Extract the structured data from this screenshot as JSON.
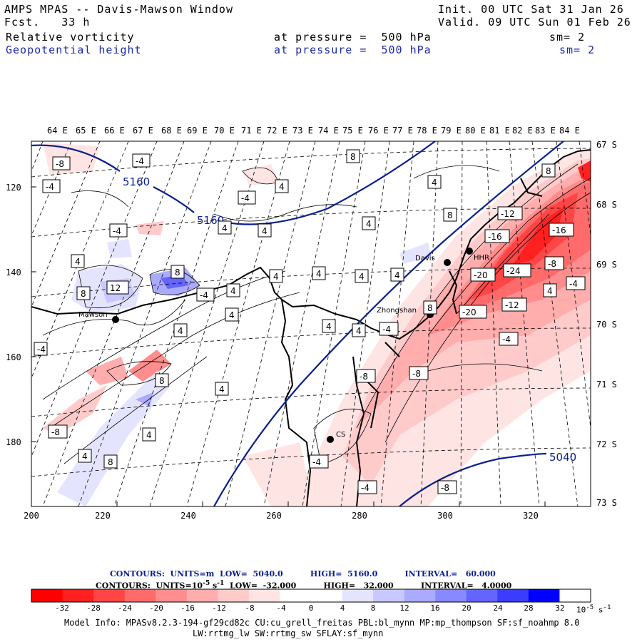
{
  "header": {
    "title": "AMPS MPAS -- Davis-Mawson Window",
    "fcst": "Fcst.   33 h",
    "init": "Init. 00 UTC Sat 31 Jan 26",
    "valid": "Valid. 09 UTC Sun 01 Feb 26",
    "field1": {
      "name": "Relative vorticity",
      "pressure": "at pressure =  500 hPa",
      "sm": "sm= 2"
    },
    "field2": {
      "name": "Geopotential height",
      "pressure": "at pressure =  500 hPa",
      "sm": "sm= 2"
    }
  },
  "axes": {
    "lon_labels": [
      "64 E",
      "65 E",
      "66 E",
      "67 E",
      "68 E",
      "69 E",
      "70 E",
      "71 E",
      "72 E",
      "73 E",
      "74 E",
      "75 E",
      "76 E",
      "77 E",
      "78 E",
      "79 E",
      "80 E",
      "81 E",
      "82 E",
      "83 E",
      "84 E"
    ],
    "lat_labels": [
      "67 S",
      "68 S",
      "69 S",
      "70 S",
      "71 S",
      "72 S",
      "73 S"
    ],
    "x_labels": [
      "200",
      "220",
      "240",
      "260",
      "280",
      "300",
      "320"
    ],
    "y_labels": [
      "120",
      "140",
      "160",
      "180"
    ]
  },
  "stations": [
    {
      "name": "Mawson"
    },
    {
      "name": "Davis"
    },
    {
      "name": "HHR"
    },
    {
      "name": "Zhongshan"
    },
    {
      "name": "CS"
    }
  ],
  "height_labels": [
    "5160",
    "5160",
    "5040"
  ],
  "vort_labels": [
    "-8",
    "-4",
    "4",
    "8",
    "-12",
    "-16",
    "-20",
    "-24",
    "12"
  ],
  "contour_info": {
    "line1": "CONTOURS:  UNITS=m  LOW=  5040.0          HIGH=  5160.0          INTERVAL=   60.000",
    "line2_a": "CONTOURS:  UNITS=10",
    "line2_exp": "-5",
    "line2_b": " s",
    "line2_exp2": "-1",
    "line2_c": "  LOW=  -32.000          HIGH=   32.000          INTERVAL=   4.0000"
  },
  "colorbar": {
    "labels": [
      "-32",
      "-28",
      "-24",
      "-20",
      "-16",
      "-12",
      "-8",
      "-4",
      "0",
      "4",
      "8",
      "12",
      "16",
      "20",
      "24",
      "28",
      "32"
    ],
    "units": "10",
    "units_exp": "-5",
    "units_s": " s",
    "units_exp2": "-1",
    "colors": [
      "#ff0000",
      "#ff2020",
      "#ff4545",
      "#ff6a6a",
      "#ff8d8d",
      "#ffadad",
      "#ffcaca",
      "#ffe4e4",
      "#ffffff",
      "#ffffff",
      "#e4e4ff",
      "#c8c8ff",
      "#aaaaff",
      "#8888ff",
      "#6464ff",
      "#3c3cff",
      "#0000ff"
    ]
  },
  "model_info": {
    "line1": "Model Info: MPASv8.2.3-194-gf29cd82c CU:cu_grell_freitas PBL:bl_mynn MP:mp_thompson SF:sf_noahmp 8.0",
    "line2": "LW:rrtmg_lw SW:rrtmg_sw SFLAY:sf_mynn"
  }
}
